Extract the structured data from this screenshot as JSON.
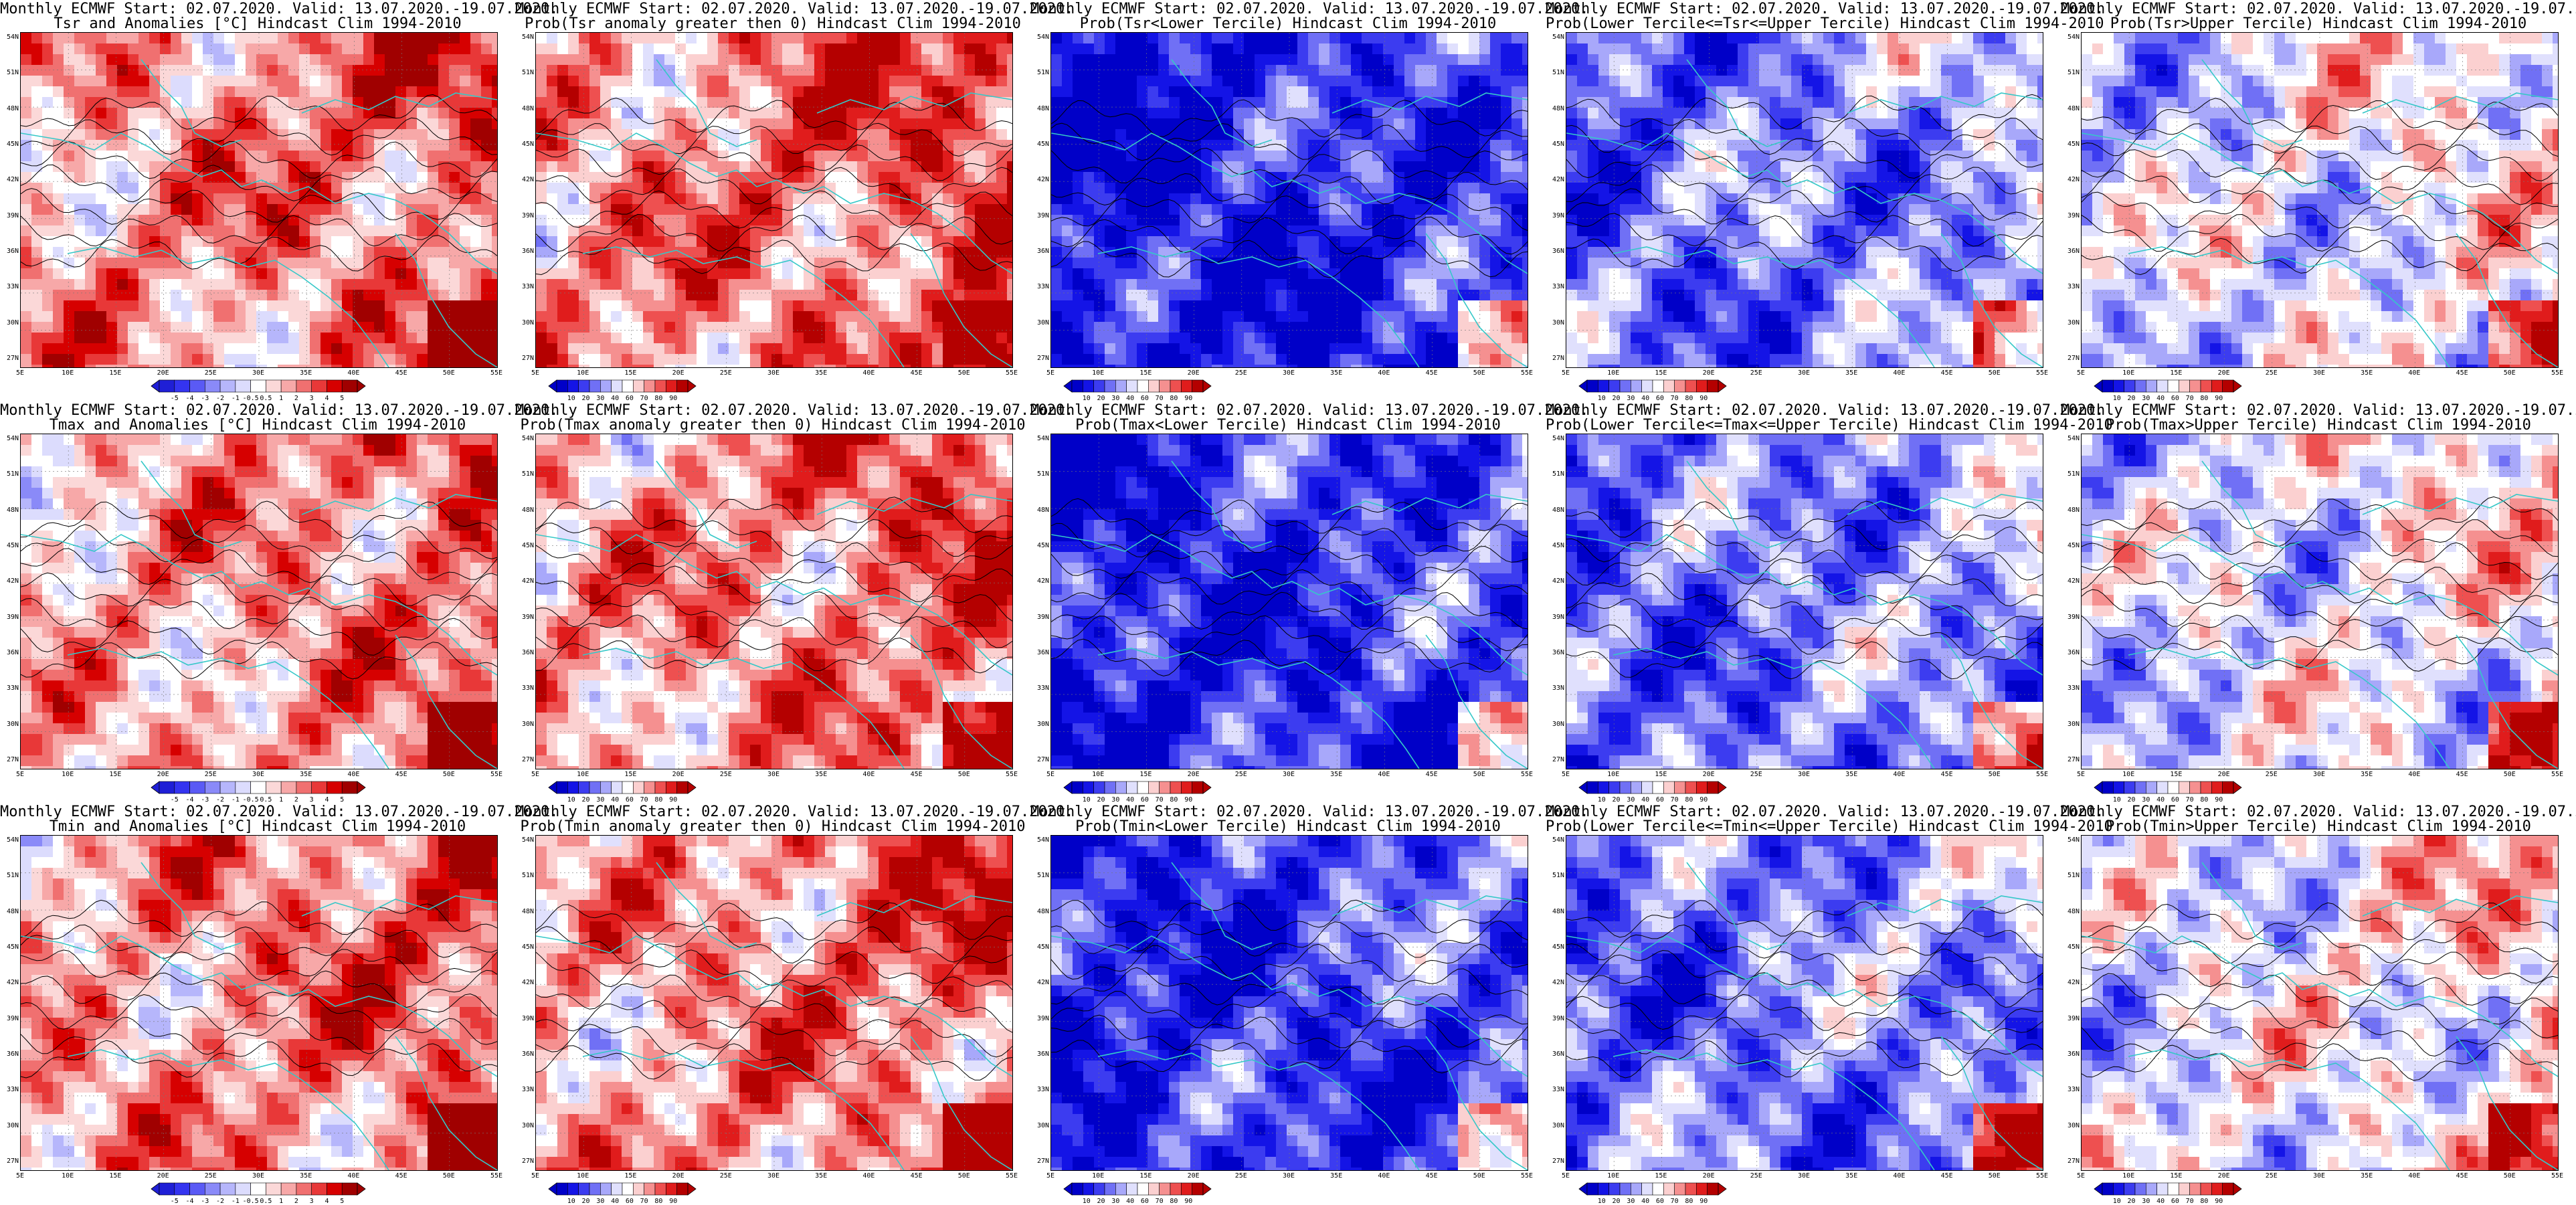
{
  "header_line": "Monthly ECMWF Start: 02.07.2020. Valid: 13.07.2020.-19.07.2020.",
  "lat_labels": [
    "54N",
    "51N",
    "48N",
    "45N",
    "42N",
    "39N",
    "36N",
    "33N",
    "30N",
    "27N"
  ],
  "lon_labels": [
    "5E",
    "10E",
    "15E",
    "20E",
    "25E",
    "30E",
    "35E",
    "40E",
    "45E",
    "50E",
    "55E"
  ],
  "colorbars": {
    "anomaly": {
      "labels": [
        "-5",
        "-4",
        "-3",
        "-2",
        "-1",
        "-0.5",
        "0.5",
        "1",
        "2",
        "3",
        "4",
        "5"
      ]
    },
    "probability": {
      "labels": [
        "10",
        "20",
        "30",
        "40",
        "60",
        "70",
        "80",
        "90"
      ]
    }
  },
  "panels": [
    {
      "subtitle": "Tsr and Anomalies [°C] Hindcast Clim 1994-2010",
      "type": "anomaly",
      "bias": 0.35
    },
    {
      "subtitle": "Prob(Tsr anomaly greater then 0) Hindcast Clim 1994-2010",
      "type": "prob",
      "bias": 0.45
    },
    {
      "subtitle": "Prob(Tsr<Lower Tercile) Hindcast Clim 1994-2010",
      "type": "prob",
      "bias": -0.75
    },
    {
      "subtitle": "Prob(Lower Tercile<=Tsr<=Upper Tercile) Hindcast Clim 1994-2010",
      "type": "prob",
      "bias": -0.4
    },
    {
      "subtitle": "Prob(Tsr>Upper Tercile) Hindcast Clim 1994-2010",
      "type": "prob",
      "bias": -0.05
    },
    {
      "subtitle": "Tmax and Anomalies [°C] Hindcast Clim 1994-2010",
      "type": "anomaly",
      "bias": 0.3
    },
    {
      "subtitle": "Prob(Tmax anomaly greater then 0) Hindcast Clim 1994-2010",
      "type": "prob",
      "bias": 0.4
    },
    {
      "subtitle": "Prob(Tmax<Lower Tercile) Hindcast Clim 1994-2010",
      "type": "prob",
      "bias": -0.7
    },
    {
      "subtitle": "Prob(Lower Tercile<=Tmax<=Upper Tercile) Hindcast Clim 1994-2010",
      "type": "prob",
      "bias": -0.4
    },
    {
      "subtitle": "Prob(Tmax>Upper Tercile) Hindcast Clim 1994-2010",
      "type": "prob",
      "bias": -0.05
    },
    {
      "subtitle": "Tmin and Anomalies [°C] Hindcast Clim 1994-2010",
      "type": "anomaly",
      "bias": 0.35
    },
    {
      "subtitle": "Prob(Tmin anomaly greater then 0) Hindcast Clim 1994-2010",
      "type": "prob",
      "bias": 0.4
    },
    {
      "subtitle": "Prob(Tmin<Lower Tercile) Hindcast Clim 1994-2010",
      "type": "prob",
      "bias": -0.65
    },
    {
      "subtitle": "Prob(Lower Tercile<=Tmin<=Upper Tercile) Hindcast Clim 1994-2010",
      "type": "prob",
      "bias": -0.4
    },
    {
      "subtitle": "Prob(Tmin>Upper Tercile) Hindcast Clim 1994-2010",
      "type": "prob",
      "bias": 0.0
    }
  ],
  "colors": {
    "coast": "#35c8c8",
    "contour": "#000000",
    "anomaly_scale": [
      "#1f1fd6",
      "#3434f0",
      "#5a5af5",
      "#8a8af8",
      "#b6b6fb",
      "#dcdcfd",
      "#ffffff",
      "#fbd8d8",
      "#f7a8a8",
      "#f07070",
      "#e83838",
      "#d60000",
      "#a00000"
    ],
    "prob_scale": [
      "#0000c8",
      "#1414e6",
      "#3c3cf0",
      "#7070f5",
      "#a8a8fa",
      "#e0e0fd",
      "#ffffff",
      "#fbd0d0",
      "#f59090",
      "#ee5050",
      "#e01c1c",
      "#b40000"
    ]
  }
}
